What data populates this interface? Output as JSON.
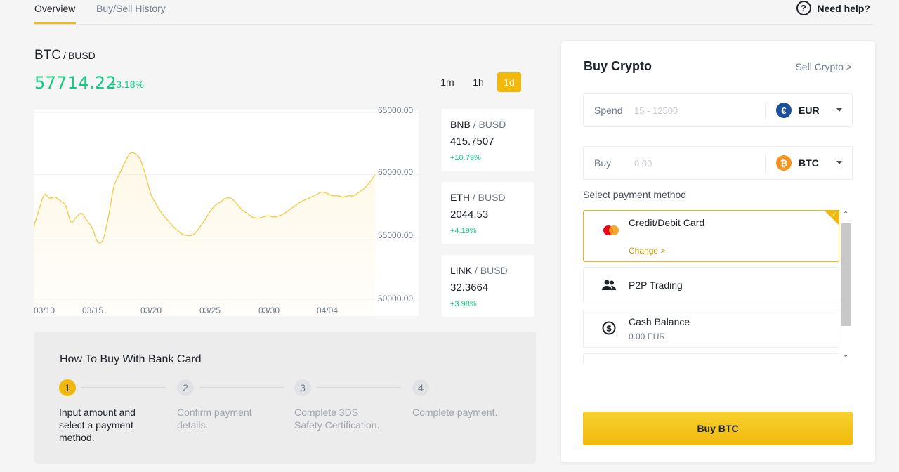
{
  "nav": {
    "tabs": [
      "Overview",
      "Buy/Sell History"
    ],
    "active_tab": "Overview",
    "help_label": "Need help?"
  },
  "market": {
    "base": "BTC",
    "quote": "BUSD",
    "price": "57714.22",
    "change": "+3.18%",
    "ranges": [
      "1m",
      "1h",
      "1d"
    ],
    "active_range": "1d"
  },
  "chart_data": {
    "type": "area",
    "x_tick_labels": [
      "03/10",
      "03/15",
      "03/20",
      "03/25",
      "03/30",
      "04/04"
    ],
    "y_tick_labels": [
      "65000.00",
      "60000.00",
      "55000.00",
      "50000.00"
    ],
    "ylim": [
      50000,
      65000
    ],
    "series": [
      {
        "values": [
          55800,
          57200,
          58400,
          58100,
          58200,
          57900,
          57500,
          56200,
          56600,
          56900,
          56300,
          55700,
          54600,
          54800,
          56600,
          59000,
          60000,
          60900,
          61700,
          61700,
          61200,
          59900,
          58400,
          57600,
          56900,
          56400,
          55900,
          55500,
          55200,
          55100,
          55200,
          55700,
          56300,
          57000,
          57500,
          57800,
          58100,
          58100,
          57700,
          57200,
          56900,
          56600,
          56500,
          56600,
          56700,
          56600,
          56700,
          56900,
          57200,
          57500,
          57800,
          58000,
          58200,
          58400,
          58600,
          58500,
          58300,
          58300,
          58200,
          58300,
          58300,
          58600,
          58900,
          59400,
          60000
        ]
      }
    ],
    "color": "#f0b90b",
    "grid": true
  },
  "tickers": [
    {
      "base": "BNB",
      "quote": "BUSD",
      "price": "415.7507",
      "change": "+10.79%"
    },
    {
      "base": "ETH",
      "quote": "BUSD",
      "price": "2044.53",
      "change": "+4.19%"
    },
    {
      "base": "LINK",
      "quote": "BUSD",
      "price": "32.3664",
      "change": "+3.98%"
    }
  ],
  "howto": {
    "title": "How To Buy With Bank Card",
    "steps": [
      {
        "num": "1",
        "text": "Input amount and select a payment method."
      },
      {
        "num": "2",
        "text": "Confirm payment details."
      },
      {
        "num": "3",
        "text": "Complete 3DS Safety Certification."
      },
      {
        "num": "4",
        "text": "Complete payment."
      }
    ]
  },
  "panel": {
    "title": "Buy Crypto",
    "sell_link": "Sell Crypto >",
    "spend": {
      "label": "Spend",
      "placeholder": "15 - 12500",
      "currency": "EUR",
      "currency_icon": "euro-icon"
    },
    "buy": {
      "label": "Buy",
      "placeholder": "0.00",
      "currency": "BTC",
      "currency_icon": "bitcoin-icon"
    },
    "payment_label": "Select payment method",
    "methods": [
      {
        "name": "Credit/Debit Card",
        "action": "Change >",
        "icon": "mastercard-icon",
        "selected": true
      },
      {
        "name": "P2P Trading",
        "icon": "people-icon"
      },
      {
        "name": "Cash Balance",
        "sub": "0.00 EUR",
        "icon": "dollar-circle-icon"
      }
    ],
    "buy_button": "Buy BTC",
    "accent": "#f0b90b"
  }
}
